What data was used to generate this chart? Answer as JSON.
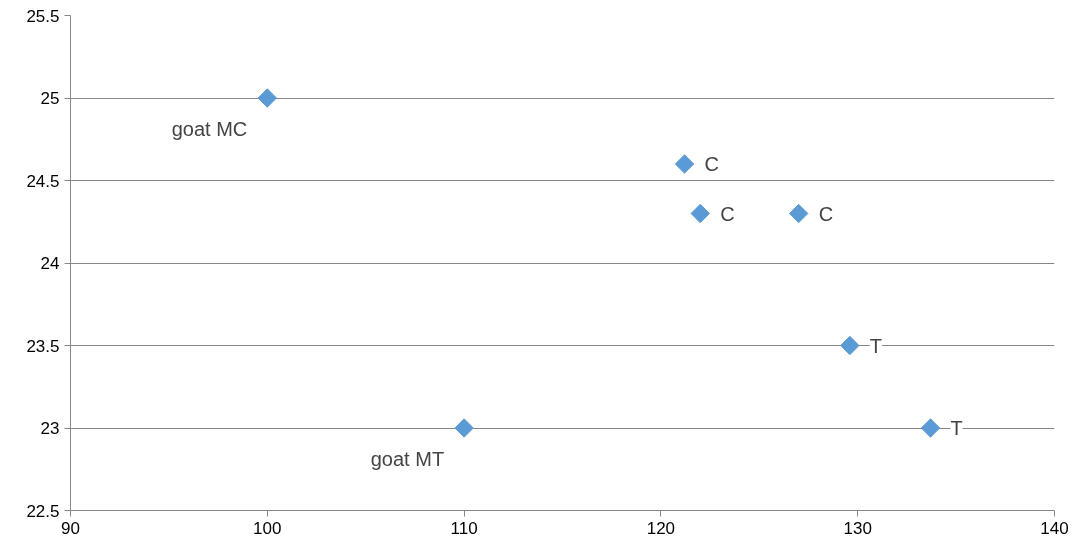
{
  "chart_data": {
    "type": "scatter",
    "x": [
      100,
      121.2,
      122,
      127,
      129.6,
      133.7,
      110
    ],
    "series": [
      {
        "color": "#5b9bd5",
        "values": [
          25,
          24.6,
          24.3,
          24.3,
          23.5,
          23,
          23
        ],
        "value_labels": [
          "goat MC",
          "C",
          "C",
          "C",
          "T",
          "T",
          "goat MT"
        ]
      }
    ],
    "xlim": [
      90,
      140
    ],
    "xticks": [
      90,
      100,
      110,
      120,
      130,
      140
    ],
    "ylim": [
      22.5,
      25.5
    ],
    "yticks": [
      22.5,
      23,
      23.5,
      24,
      24.5,
      25,
      25.5
    ],
    "grid": "y",
    "marker": "diamond"
  }
}
